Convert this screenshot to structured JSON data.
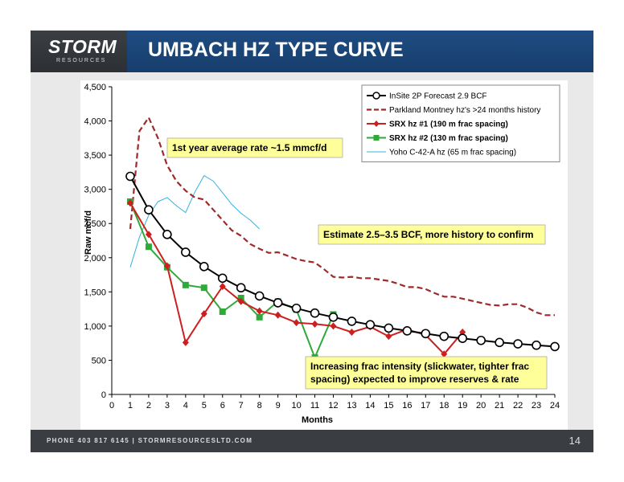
{
  "header": {
    "logo_word": "STORM",
    "logo_sub": "RESOURCES",
    "title": "UMBACH HZ TYPE CURVE"
  },
  "footer": {
    "contact": "PHONE 403 817 6145  |  STORMRESOURCESLTD.COM",
    "page_number": "14"
  },
  "colors": {
    "header_blue": "#1e4c82",
    "logo_gray": "#3b3f43",
    "annotation_fill": "#ffff99"
  },
  "chart_data": {
    "type": "line",
    "xlabel": "Months",
    "ylabel": "Raw mcf/d",
    "xlim": [
      0,
      24
    ],
    "ylim": [
      0,
      4500
    ],
    "x_ticks": [
      "0",
      "1",
      "2",
      "3",
      "4",
      "5",
      "6",
      "7",
      "8",
      "9",
      "10",
      "11",
      "12",
      "13",
      "14",
      "15",
      "16",
      "17",
      "18",
      "19",
      "20",
      "21",
      "22",
      "23",
      "24"
    ],
    "y_ticks": [
      "0",
      "500",
      "1,000",
      "1,500",
      "2,000",
      "2,500",
      "3,000",
      "3,500",
      "4,000",
      "4,500"
    ],
    "grid": false,
    "legend_position": "top-right",
    "series": [
      {
        "name": "InSite 2P Forecast 2.9 BCF",
        "style": "line-open-circle",
        "color": "#000000",
        "x": [
          1,
          2,
          3,
          4,
          5,
          6,
          7,
          8,
          9,
          10,
          11,
          12,
          13,
          14,
          15,
          16,
          17,
          18,
          19,
          20,
          21,
          22,
          23,
          24
        ],
        "y": [
          3190,
          2700,
          2340,
          2080,
          1870,
          1700,
          1560,
          1440,
          1340,
          1260,
          1190,
          1130,
          1070,
          1020,
          970,
          930,
          890,
          850,
          820,
          790,
          760,
          740,
          720,
          700
        ]
      },
      {
        "name": "Parkland Montney hz's >24 months history",
        "style": "dashed",
        "color": "#9e2a2a",
        "x": [
          1,
          1.5,
          2,
          2.5,
          3,
          3.5,
          4,
          4.5,
          5,
          5.5,
          6,
          6.5,
          7,
          7.5,
          8,
          8.5,
          9,
          9.5,
          10,
          10.5,
          11,
          11.5,
          12,
          12.5,
          13,
          13.5,
          14,
          14.5,
          15,
          15.5,
          16,
          16.5,
          17,
          17.5,
          18,
          18.5,
          19,
          19.5,
          20,
          20.5,
          21,
          21.5,
          22,
          22.5,
          23,
          23.5,
          24
        ],
        "y": [
          2420,
          3850,
          4050,
          3750,
          3350,
          3120,
          2980,
          2880,
          2850,
          2700,
          2550,
          2400,
          2320,
          2200,
          2130,
          2070,
          2080,
          2030,
          1980,
          1950,
          1930,
          1830,
          1720,
          1710,
          1720,
          1700,
          1700,
          1680,
          1660,
          1620,
          1570,
          1570,
          1540,
          1480,
          1430,
          1430,
          1400,
          1370,
          1340,
          1310,
          1300,
          1320,
          1320,
          1270,
          1200,
          1160,
          1160
        ]
      },
      {
        "name": "SRX hz #1 (190 m frac spacing)",
        "style": "line-diamond",
        "color": "#cc1f1f",
        "x": [
          1,
          2,
          3,
          4,
          5,
          6,
          7,
          8,
          9,
          10,
          11,
          12,
          13,
          14,
          15,
          16,
          17,
          18,
          19
        ],
        "y": [
          2800,
          2340,
          1880,
          760,
          1180,
          1580,
          1360,
          1220,
          1160,
          1050,
          1030,
          1000,
          910,
          990,
          850,
          950,
          870,
          590,
          910
        ]
      },
      {
        "name": "SRX hz #2 (130 m frac spacing)",
        "style": "line-square",
        "color": "#2eaa3a",
        "x": [
          1,
          2,
          3,
          4,
          5,
          6,
          7,
          8,
          9,
          10,
          11,
          12
        ],
        "y": [
          2820,
          2160,
          1860,
          1600,
          1560,
          1210,
          1410,
          1130,
          1360,
          1240,
          540,
          1170
        ]
      },
      {
        "name": "Yoho C-42-A hz (65 m frac spacing)",
        "style": "thin",
        "color": "#33b4e0",
        "x": [
          1,
          1.5,
          2,
          2.5,
          3,
          3.5,
          4,
          4.5,
          5,
          5.5,
          6,
          6.5,
          7,
          7.5,
          8
        ],
        "y": [
          1860,
          2300,
          2620,
          2820,
          2880,
          2760,
          2660,
          2960,
          3200,
          3120,
          2950,
          2780,
          2650,
          2550,
          2420
        ]
      }
    ],
    "annotations": [
      {
        "lines": [
          "1st year average rate ~1.5 mmcf/d"
        ]
      },
      {
        "lines": [
          "Estimate 2.5–3.5 BCF, more history to confirm"
        ]
      },
      {
        "lines": [
          "Increasing frac intensity (slickwater, tighter frac",
          "spacing) expected to improve reserves & rate"
        ]
      }
    ]
  }
}
